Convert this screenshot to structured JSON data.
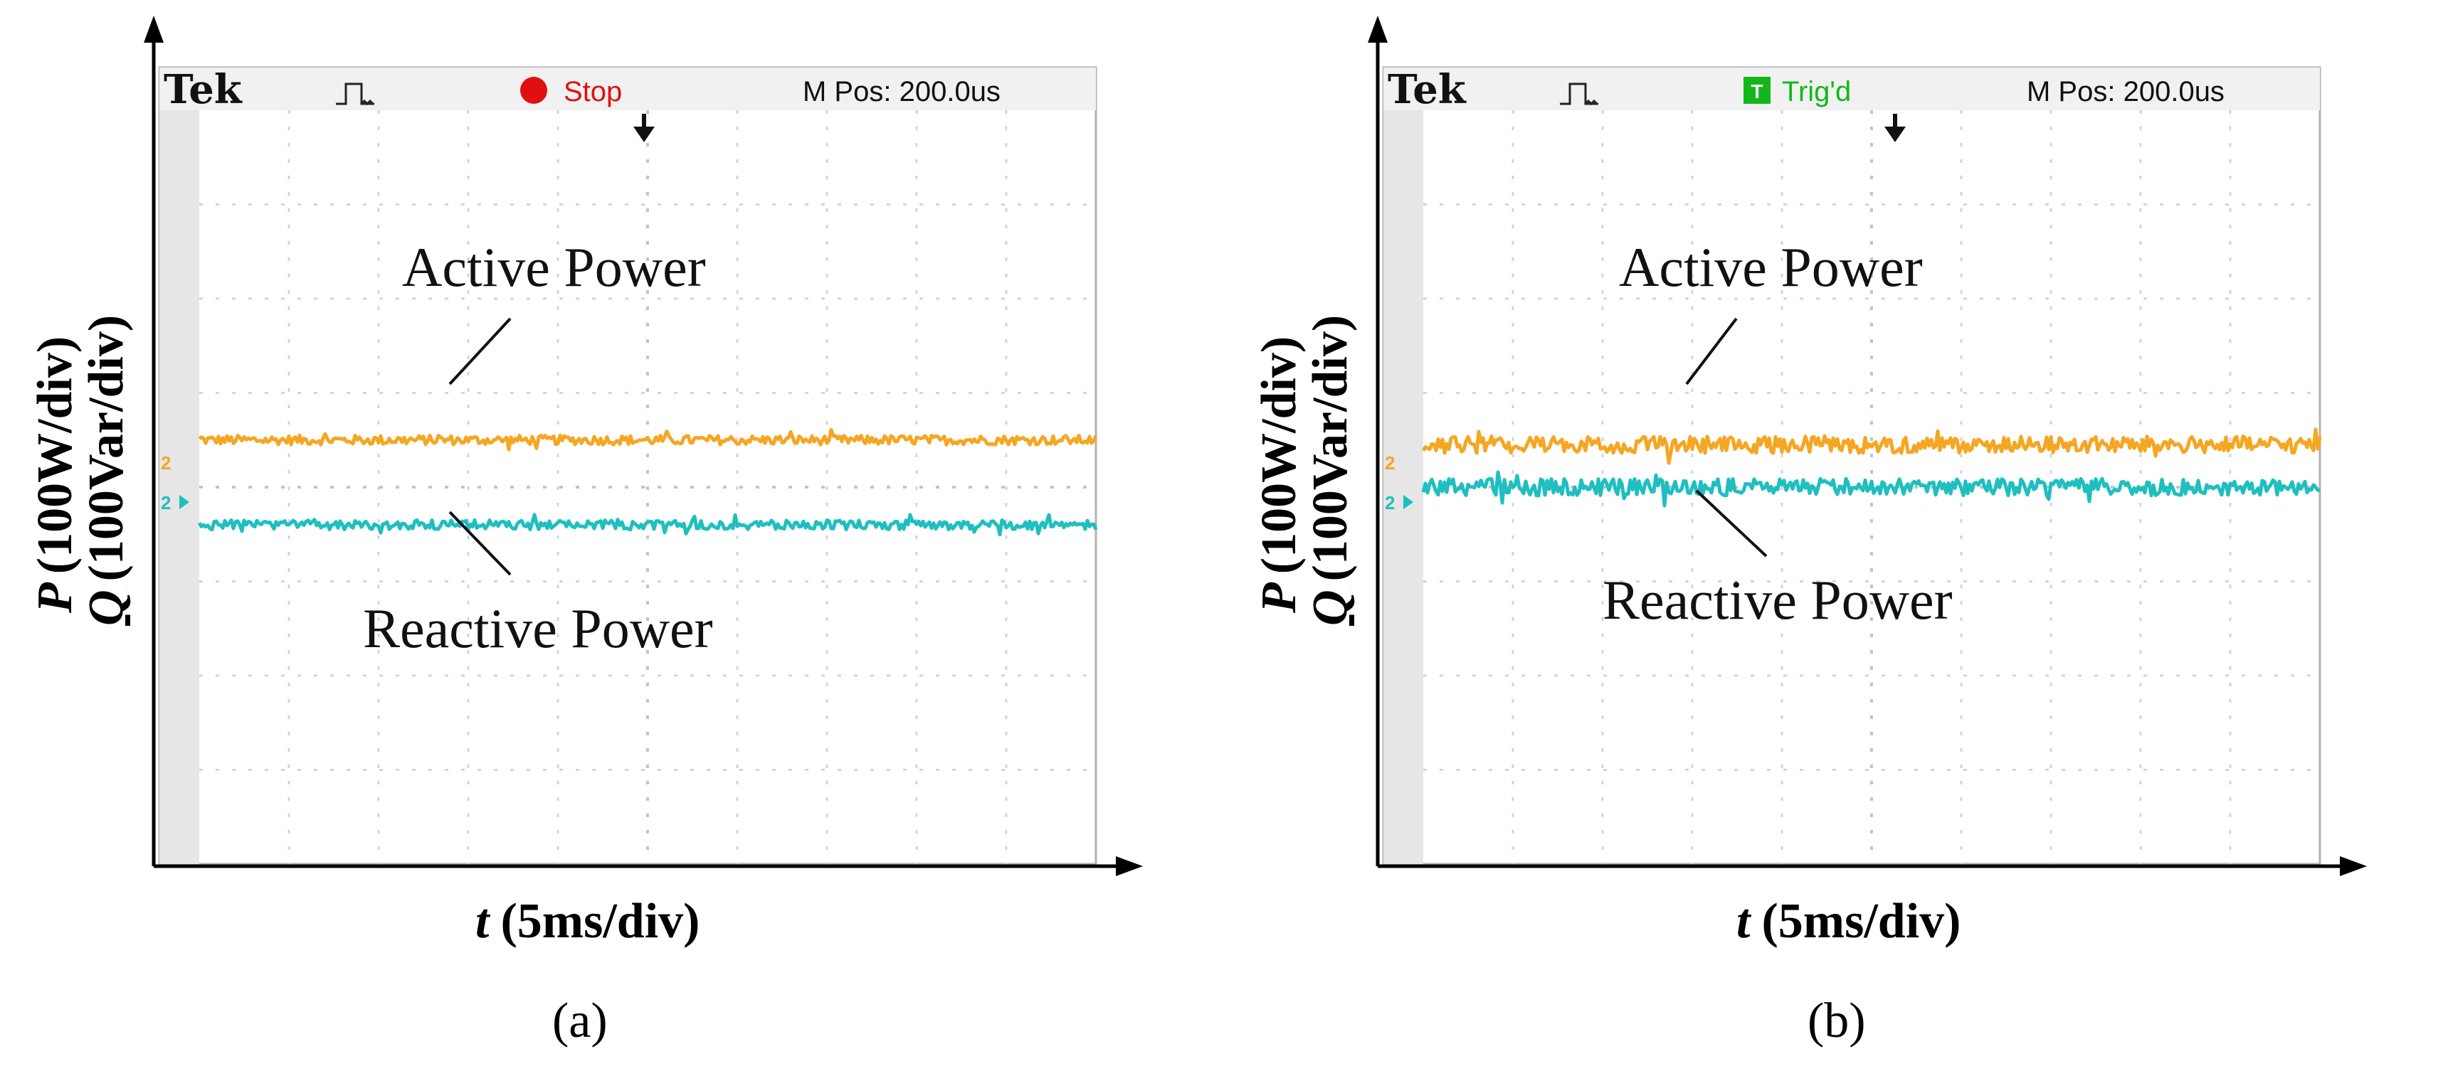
{
  "chart_data": [
    {
      "type": "line",
      "panel": "(a)",
      "scope": {
        "brand": "Tek",
        "status": "Stop",
        "status_color": "#e01010",
        "status_icon": "stop-dot-icon",
        "m_pos": "M Pos: 200.0",
        "m_pos_unit": "us"
      },
      "xlabel_var": "t",
      "xlabel_unit": "(5ms/div)",
      "ylabel_p_var": "P",
      "ylabel_p_unit": "(100W/div)",
      "ylabel_q_var": "Q",
      "ylabel_q_unit": "(100Var/div)",
      "xlim": [
        0,
        10
      ],
      "ylim": [
        0,
        8
      ],
      "grid": true,
      "channel_marker": "2",
      "series": [
        {
          "name": "Active Power",
          "color": "#f5a623",
          "level_div": 4.5,
          "noise_div": 0.05
        },
        {
          "name": "Reactive Power",
          "color": "#1fbfc0",
          "level_div": 3.6,
          "noise_div": 0.05
        }
      ]
    },
    {
      "type": "line",
      "panel": "(b)",
      "scope": {
        "brand": "Tek",
        "status": "Trig'd",
        "status_color": "#12b81a",
        "status_icon": "trigger-badge-icon",
        "m_pos": "M Pos: 200.0",
        "m_pos_unit": "us"
      },
      "xlabel_var": "t",
      "xlabel_unit": "(5ms/div)",
      "ylabel_p_var": "P",
      "ylabel_p_unit": "(100W/div)",
      "ylabel_q_var": "Q",
      "ylabel_q_unit": "(100Var/div)",
      "xlim": [
        0,
        10
      ],
      "ylim": [
        0,
        8
      ],
      "grid": true,
      "channel_marker": "2",
      "series": [
        {
          "name": "Active Power",
          "color": "#f5a623",
          "level_div": 4.45,
          "noise_div": 0.09
        },
        {
          "name": "Reactive Power",
          "color": "#1fbfc0",
          "level_div": 4.0,
          "noise_div": 0.09
        }
      ]
    }
  ]
}
